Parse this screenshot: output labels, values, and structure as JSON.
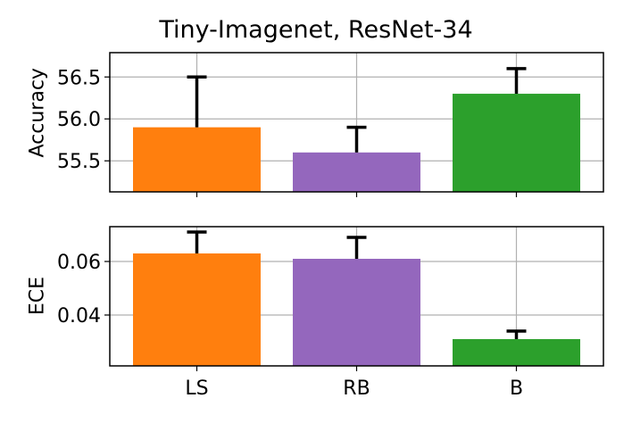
{
  "chart_data": [
    {
      "type": "bar",
      "title": "Tiny-Imagenet, ResNet-34",
      "xlabel": "",
      "ylabel": "Accuracy",
      "categories": [
        "LS",
        "RB",
        "B"
      ],
      "values": [
        55.9,
        55.6,
        56.3
      ],
      "error_upper": [
        0.6,
        0.3,
        0.3
      ],
      "colors": [
        "#ff7f0e",
        "#9467bd",
        "#2ca02c"
      ],
      "ylim": [
        55.13,
        56.79
      ],
      "yticks": [
        55.5,
        56.0,
        56.5
      ],
      "ytick_labels": [
        "55.5",
        "56.0",
        "56.5"
      ],
      "grid": true
    },
    {
      "type": "bar",
      "title": "",
      "xlabel": "",
      "ylabel": "ECE",
      "categories": [
        "LS",
        "RB",
        "B"
      ],
      "values": [
        0.063,
        0.061,
        0.031
      ],
      "error_upper": [
        0.008,
        0.008,
        0.003
      ],
      "colors": [
        "#ff7f0e",
        "#9467bd",
        "#2ca02c"
      ],
      "ylim": [
        0.021,
        0.073
      ],
      "yticks": [
        0.04,
        0.06
      ],
      "ytick_labels": [
        "0.04",
        "0.06"
      ],
      "grid": true
    }
  ],
  "figure": {
    "title": "Tiny-Imagenet, ResNet-34",
    "top_ylabel": "Accuracy",
    "bottom_ylabel": "ECE",
    "x_tick_labels": [
      "LS",
      "RB",
      "B"
    ]
  }
}
